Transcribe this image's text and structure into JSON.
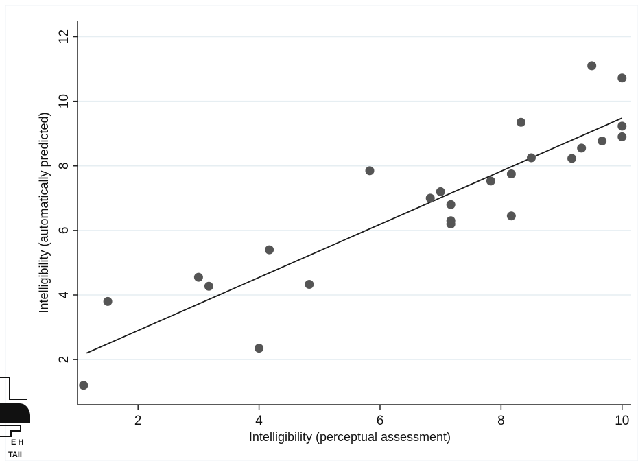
{
  "chart_data": {
    "type": "scatter",
    "xlabel": "Intelligibility (perceptual assessment)",
    "ylabel": "Intelligibility (automatically predicted)",
    "xlim": [
      1.0,
      10.15
    ],
    "ylim": [
      0.6,
      12.5
    ],
    "x_ticks": [
      2,
      4,
      6,
      8,
      10
    ],
    "y_ticks": [
      2,
      4,
      6,
      8,
      10,
      12
    ],
    "grid": "horizontal",
    "points": [
      {
        "x": 1.1,
        "y": 1.2
      },
      {
        "x": 1.5,
        "y": 3.8
      },
      {
        "x": 3.0,
        "y": 4.55
      },
      {
        "x": 3.17,
        "y": 4.27
      },
      {
        "x": 4.0,
        "y": 2.35
      },
      {
        "x": 4.17,
        "y": 5.4
      },
      {
        "x": 4.83,
        "y": 4.33
      },
      {
        "x": 5.83,
        "y": 7.85
      },
      {
        "x": 6.83,
        "y": 7.0
      },
      {
        "x": 7.0,
        "y": 7.2
      },
      {
        "x": 7.17,
        "y": 6.8
      },
      {
        "x": 7.17,
        "y": 6.3
      },
      {
        "x": 7.17,
        "y": 6.2
      },
      {
        "x": 7.83,
        "y": 7.53
      },
      {
        "x": 8.17,
        "y": 7.75
      },
      {
        "x": 8.17,
        "y": 6.45
      },
      {
        "x": 8.33,
        "y": 9.35
      },
      {
        "x": 8.5,
        "y": 8.25
      },
      {
        "x": 9.17,
        "y": 8.23
      },
      {
        "x": 9.33,
        "y": 8.55
      },
      {
        "x": 9.5,
        "y": 11.1
      },
      {
        "x": 9.67,
        "y": 8.77
      },
      {
        "x": 10.0,
        "y": 10.72
      },
      {
        "x": 10.0,
        "y": 9.23
      },
      {
        "x": 10.0,
        "y": 8.9
      }
    ],
    "fit_line": {
      "x": [
        1.15,
        10.0
      ],
      "y": [
        2.2,
        9.48
      ]
    },
    "colors": {
      "marker": "#555555",
      "line": "#1a1a1a",
      "grid": "#e6eef2",
      "axis": "#222222"
    }
  },
  "overlay": {
    "fragment_line1": "E H",
    "fragment_line2": "TAII"
  }
}
